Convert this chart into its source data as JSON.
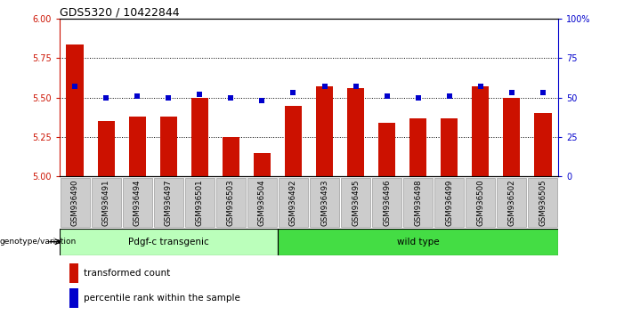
{
  "title": "GDS5320 / 10422844",
  "samples": [
    "GSM936490",
    "GSM936491",
    "GSM936494",
    "GSM936497",
    "GSM936501",
    "GSM936503",
    "GSM936504",
    "GSM936492",
    "GSM936493",
    "GSM936495",
    "GSM936496",
    "GSM936498",
    "GSM936499",
    "GSM936500",
    "GSM936502",
    "GSM936505"
  ],
  "red_values": [
    5.84,
    5.35,
    5.38,
    5.38,
    5.5,
    5.25,
    5.15,
    5.45,
    5.57,
    5.56,
    5.34,
    5.37,
    5.37,
    5.57,
    5.5,
    5.4
  ],
  "blue_values": [
    57,
    50,
    51,
    50,
    52,
    50,
    48,
    53,
    57,
    57,
    51,
    50,
    51,
    57,
    53,
    53
  ],
  "ylim_left": [
    5.0,
    6.0
  ],
  "ylim_right": [
    0,
    100
  ],
  "yticks_left": [
    5.0,
    5.25,
    5.5,
    5.75,
    6.0
  ],
  "yticks_right": [
    0,
    25,
    50,
    75,
    100
  ],
  "ytick_labels_right": [
    "0",
    "25",
    "50",
    "75",
    "100%"
  ],
  "group1_label": "Pdgf-c transgenic",
  "group2_label": "wild type",
  "group1_count": 7,
  "group2_count": 9,
  "bar_color_red": "#cc1100",
  "bar_color_blue": "#0000cc",
  "group1_bg": "#bbffbb",
  "group2_bg": "#44dd44",
  "xlabel_label": "genotype/variation",
  "legend_red": "transformed count",
  "legend_blue": "percentile rank within the sample",
  "bar_width": 0.55,
  "tick_label_bg": "#cccccc",
  "title_color": "#000000",
  "left_tick_color": "#cc1100",
  "right_tick_color": "#0000cc",
  "grid_ticks": [
    5.25,
    5.5,
    5.75
  ]
}
